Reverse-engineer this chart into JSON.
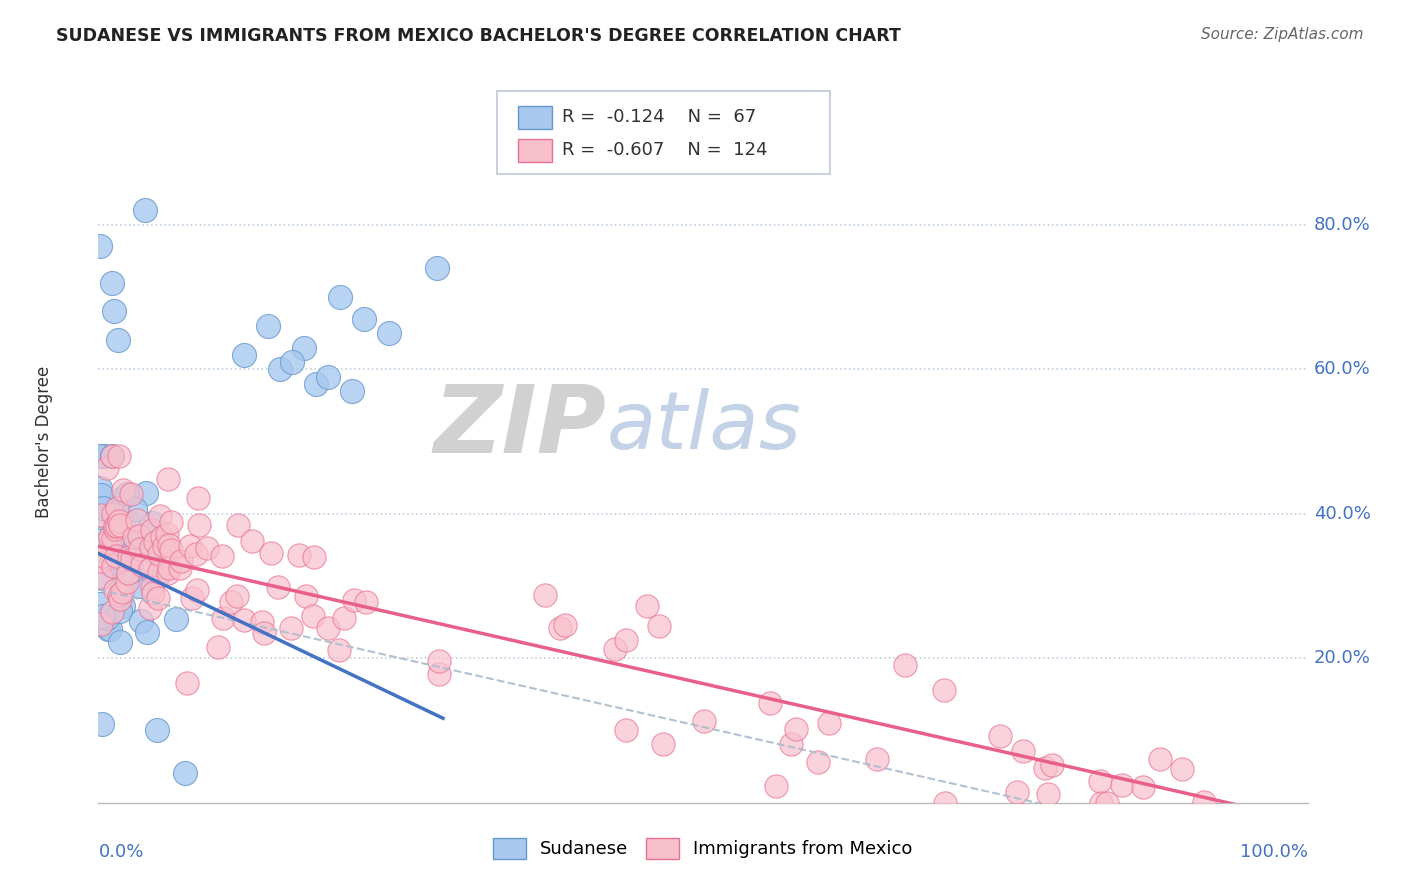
{
  "title": "SUDANESE VS IMMIGRANTS FROM MEXICO BACHELOR'S DEGREE CORRELATION CHART",
  "source": "Source: ZipAtlas.com",
  "ylabel": "Bachelor's Degree",
  "r1": -0.124,
  "n1": 67,
  "r2": -0.607,
  "n2": 124,
  "color_blue_fill": "#a8c8f0",
  "color_blue_edge": "#6699cc",
  "color_pink_fill": "#f8c0cc",
  "color_pink_edge": "#e87090",
  "color_blue_line": "#4472c4",
  "color_pink_line": "#e8608a",
  "color_dashed": "#aabbcc",
  "watermark_zip": "#cccccc",
  "watermark_atlas": "#aac0dc",
  "tick_color": "#4472c4",
  "grid_color": "#c0d0e0",
  "legend1_label": "Sudanese",
  "legend2_label": "Immigrants from Mexico",
  "blue_intercept": 0.345,
  "blue_slope": -0.8,
  "pink_intercept": 0.355,
  "pink_slope": -0.38,
  "dash_intercept": 0.295,
  "dash_slope": -0.38
}
